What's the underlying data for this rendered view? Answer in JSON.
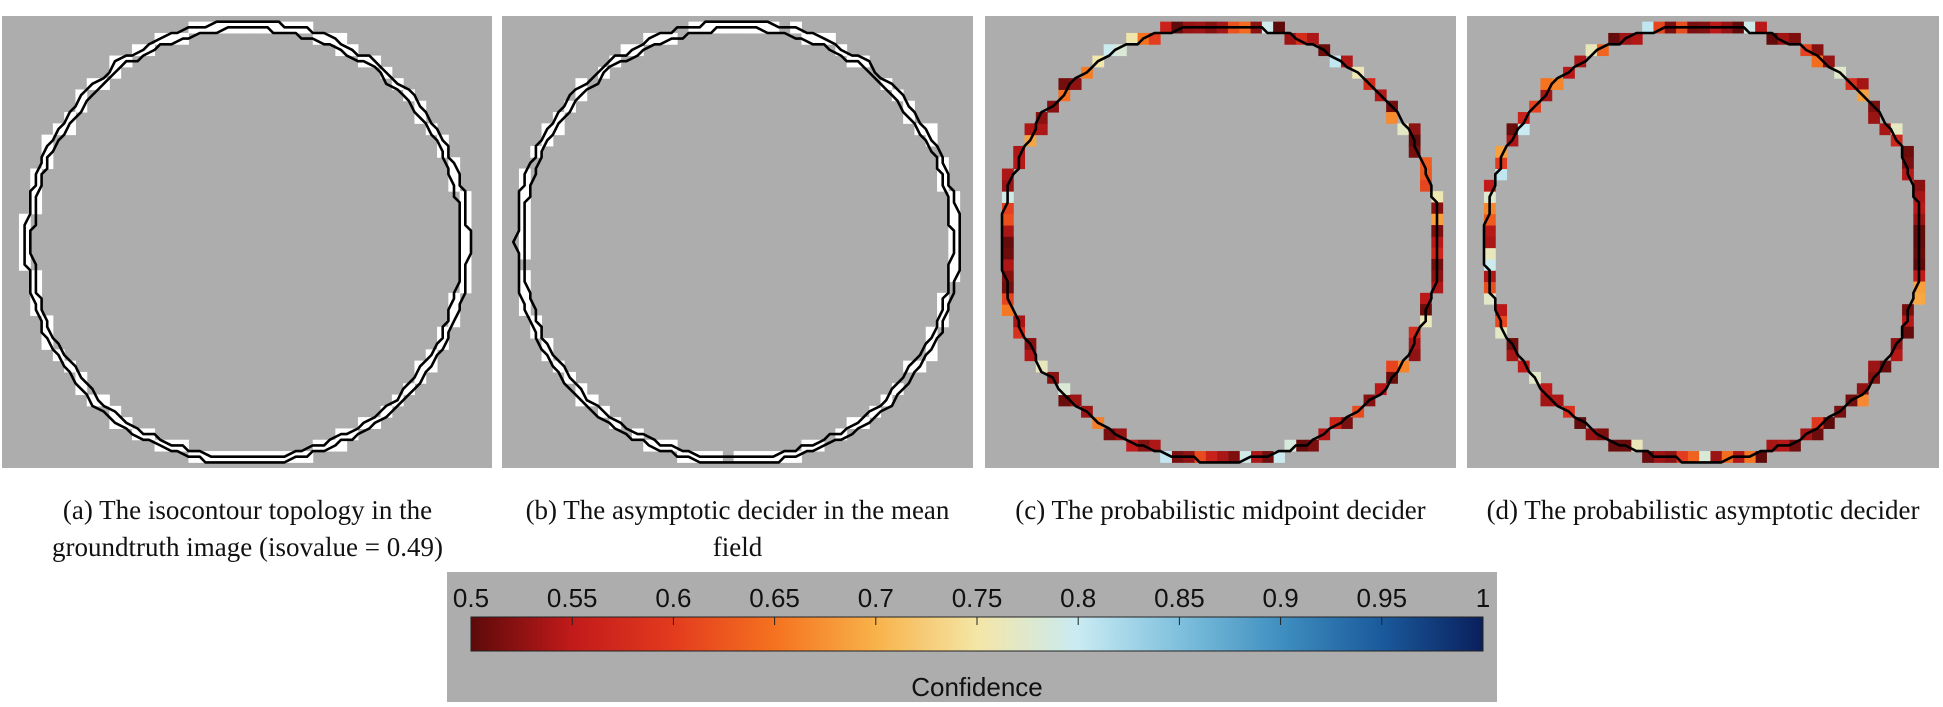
{
  "figure": {
    "panels": [
      {
        "id": "a",
        "caption": "(a) The isocontour topology in the groundtruth image (isovalue = 0.49)",
        "style": "white-cells"
      },
      {
        "id": "b",
        "caption": "(b) The asymptotic decider in the mean field",
        "style": "white-cells-broken"
      },
      {
        "id": "c",
        "caption": "(c) The probabilistic midpoint decider",
        "style": "confidence-cells"
      },
      {
        "id": "d",
        "caption": "(d) The probabilistic asymptotic decider",
        "style": "confidence-cells"
      }
    ],
    "colorbar": {
      "label": "Confidence",
      "ticks": [
        "0.5",
        "0.55",
        "0.6",
        "0.65",
        "0.7",
        "0.75",
        "0.8",
        "0.85",
        "0.9",
        "0.95",
        "1"
      ],
      "range": [
        0.5,
        1
      ],
      "colors": [
        "#5c0a0a",
        "#c21a1a",
        "#e33b1e",
        "#f5721f",
        "#f8b24a",
        "#f4e6a6",
        "#c9ebf3",
        "#7fc0dd",
        "#3f8fc0",
        "#1a5a9c",
        "#0a1f5c"
      ]
    },
    "colors": {
      "panel_background": "#adadad",
      "contour": "#000000",
      "highlight": "#ffffff"
    }
  }
}
